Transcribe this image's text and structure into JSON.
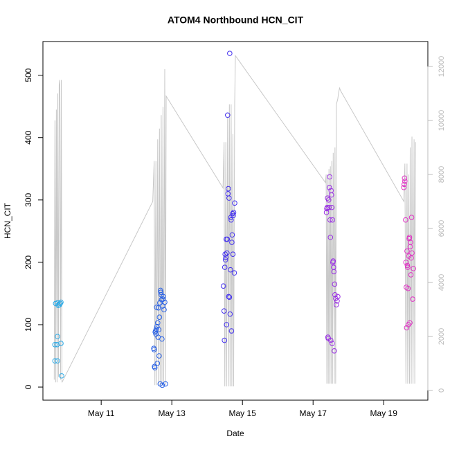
{
  "chart_data": {
    "type": "scatter",
    "title": "ATOM4 Northbound HCN_CIT",
    "x_label": "Date",
    "y_label": "HCN_CIT",
    "xlim": [
      9.35,
      20.25
    ],
    "xticks": [
      {
        "value": 11,
        "label": "May 11"
      },
      {
        "value": 13,
        "label": "May 13"
      },
      {
        "value": 15,
        "label": "May 15"
      },
      {
        "value": 17,
        "label": "May 17"
      },
      {
        "value": 19,
        "label": "May 19"
      }
    ],
    "ylim": [
      -21,
      554
    ],
    "yticks": [
      0,
      100,
      200,
      300,
      400,
      500
    ],
    "y2lim": [
      -359,
      12923
    ],
    "y2ticks": [
      0,
      2000,
      4000,
      6000,
      8000,
      10000,
      12000
    ],
    "series": [
      {
        "type": "scatter",
        "color": "#29a9e6",
        "x": [
          9.71,
          9.76,
          9.82,
          9.86,
          9.78,
          9.84,
          9.76,
          9.69,
          9.75,
          9.86,
          9.69,
          9.76,
          9.88
        ],
        "values": [
          134,
          135,
          132,
          136,
          131,
          134,
          81,
          68,
          68,
          70,
          42,
          42,
          18
        ]
      },
      {
        "type": "scatter",
        "color": "#2a62e6",
        "x": [
          12.49,
          12.5,
          12.51,
          12.52,
          12.53,
          12.54,
          12.55,
          12.56,
          12.57,
          12.58,
          12.59,
          12.6,
          12.61,
          12.62,
          12.63,
          12.64,
          12.65,
          12.66,
          12.67,
          12.68,
          12.69,
          12.7,
          12.71,
          12.72,
          12.73,
          12.74,
          12.75,
          12.76,
          12.78,
          12.8,
          12.82
        ],
        "values": [
          62,
          60,
          33,
          31,
          88,
          90,
          85,
          93,
          128,
          97,
          38,
          103,
          80,
          127,
          92,
          50,
          112,
          135,
          5,
          155,
          152,
          148,
          140,
          77,
          3,
          130,
          141,
          145,
          124,
          136,
          5
        ]
      },
      {
        "type": "scatter",
        "color": "#4330ee",
        "x": [
          14.46,
          14.48,
          14.49,
          14.5,
          14.51,
          14.52,
          14.53,
          14.54,
          14.55,
          14.56,
          14.57,
          14.58,
          14.59,
          14.6,
          14.61,
          14.62,
          14.63,
          14.64,
          14.65,
          14.66,
          14.67,
          14.68,
          14.69,
          14.7,
          14.71,
          14.72,
          14.73,
          14.74,
          14.75,
          14.77,
          14.78
        ],
        "values": [
          162,
          122,
          75,
          192,
          213,
          204,
          208,
          237,
          100,
          215,
          237,
          436,
          310,
          318,
          145,
          303,
          144,
          535,
          117,
          188,
          272,
          268,
          90,
          232,
          244,
          278,
          213,
          275,
          280,
          183,
          295
        ]
      },
      {
        "type": "scatter",
        "color": "#9a30e4",
        "x": [
          17.38,
          17.39,
          17.4,
          17.41,
          17.42,
          17.43,
          17.44,
          17.45,
          17.46,
          17.47,
          17.48,
          17.49,
          17.5,
          17.51,
          17.52,
          17.53,
          17.54,
          17.55,
          17.56,
          17.57,
          17.58,
          17.59,
          17.6,
          17.61,
          17.62,
          17.64,
          17.66,
          17.68,
          17.7
        ],
        "values": [
          280,
          286,
          288,
          303,
          80,
          78,
          300,
          288,
          320,
          337,
          268,
          240,
          75,
          315,
          308,
          288,
          70,
          268,
          200,
          202,
          192,
          185,
          58,
          165,
          148,
          142,
          132,
          138,
          145
        ]
      },
      {
        "type": "scatter",
        "color": "#e030c4",
        "x": [
          19.57,
          19.58,
          19.59,
          19.6,
          19.62,
          19.63,
          19.64,
          19.65,
          19.66,
          19.67,
          19.68,
          19.69,
          19.7,
          19.71,
          19.72,
          19.73,
          19.74,
          19.75,
          19.76,
          19.77,
          19.78,
          19.79,
          19.8,
          19.82,
          19.84
        ],
        "values": [
          320,
          325,
          335,
          330,
          268,
          200,
          160,
          95,
          218,
          195,
          192,
          158,
          100,
          210,
          238,
          240,
          103,
          225,
          232,
          180,
          207,
          272,
          215,
          141,
          190
        ]
      },
      {
        "type": "line",
        "axis": "y2",
        "color": "#c8c8c8",
        "x": [
          9.67,
          9.69,
          9.71,
          9.73,
          9.75,
          9.77,
          9.79,
          9.81,
          9.83,
          9.85,
          9.87,
          9.89,
          12.46,
          12.5,
          12.52,
          12.55,
          12.57,
          12.6,
          12.62,
          12.65,
          12.67,
          12.7,
          12.72,
          12.75,
          12.77,
          12.8,
          12.82,
          12.84,
          14.45,
          14.48,
          14.5,
          14.53,
          14.55,
          14.58,
          14.6,
          14.63,
          14.65,
          14.68,
          14.7,
          14.73,
          14.75,
          14.78,
          14.8,
          17.35,
          17.37,
          17.39,
          17.41,
          17.43,
          17.45,
          17.47,
          17.49,
          17.51,
          17.53,
          17.55,
          17.57,
          17.6,
          17.62,
          17.64,
          17.66,
          17.68,
          17.7,
          17.72,
          17.75,
          17.78,
          19.57,
          19.6,
          19.63,
          19.66,
          19.68,
          19.7,
          19.73,
          19.75,
          19.78,
          19.8,
          19.83,
          19.86,
          19.88,
          19.9
        ],
        "values": [
          400,
          10000,
          300,
          10400,
          300,
          11000,
          500,
          11300,
          11500,
          400,
          11500,
          300,
          7000,
          8500,
          200,
          8500,
          200,
          9300,
          200,
          9700,
          200,
          10200,
          200,
          10500,
          200,
          11900,
          200,
          10900,
          7500,
          9200,
          150,
          9200,
          150,
          10100,
          150,
          10600,
          150,
          10600,
          150,
          9500,
          150,
          10600,
          12400,
          7700,
          8000,
          250,
          8000,
          250,
          8200,
          250,
          8300,
          250,
          8500,
          250,
          8800,
          250,
          9000,
          250,
          10600,
          10700,
          10800,
          11000,
          11200,
          11100,
          7000,
          8400,
          250,
          8400,
          250,
          8000,
          250,
          9000,
          250,
          9400,
          250,
          9300,
          250,
          9200
        ]
      }
    ]
  }
}
